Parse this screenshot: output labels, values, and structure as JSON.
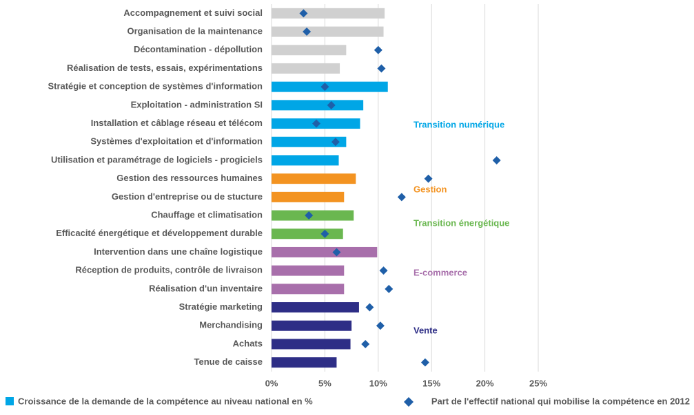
{
  "chart_data": {
    "type": "bar-dot",
    "categories": [
      "Accompagnement et suivi social",
      "Organisation de la maintenance",
      "Décontamination - dépollution",
      "Réalisation de tests, essais, expérimentations",
      "Stratégie et conception de systèmes d'information",
      "Exploitation - administration SI",
      "Installation et câblage réseau et télécom",
      "Systèmes d'exploitation et d'information",
      "Utilisation et paramétrage de logiciels - progiciels",
      "Gestion des ressources humaines",
      "Gestion d'entreprise ou de stucture",
      "Chauffage et climatisation",
      "Efficacité énergétique et développement durable",
      "Intervention dans une chaîne logistique",
      "Réception de produits, contrôle de livraison",
      "Réalisation d'un inventaire",
      "Stratégie marketing",
      "Merchandising",
      "Achats",
      "Tenue de caisse"
    ],
    "series": [
      {
        "name": "Croissance de la demande de la compétence au niveau national en %",
        "color": "#00a6e6",
        "colors": [
          "#d0d0d0",
          "#d0d0d0",
          "#d0d0d0",
          "#d0d0d0",
          "#00a6e6",
          "#00a6e6",
          "#00a6e6",
          "#00a6e6",
          "#00a6e6",
          "#f39321",
          "#f39321",
          "#6ab750",
          "#6ab750",
          "#a86fab",
          "#a86fab",
          "#a86fab",
          "#2e2e86",
          "#2e2e86",
          "#2e2e86",
          "#2e2e86"
        ],
        "values": [
          10.6,
          10.5,
          7.0,
          6.4,
          10.9,
          8.6,
          8.3,
          7.0,
          6.3,
          7.9,
          6.8,
          7.7,
          6.7,
          9.9,
          6.8,
          6.8,
          8.2,
          7.5,
          7.4,
          6.1
        ]
      },
      {
        "name": "Part de l'effectif national qui mobilise la compétence en 2012",
        "color": "#1f5fa8",
        "values": [
          3.0,
          3.3,
          10.0,
          10.3,
          5.0,
          5.6,
          4.2,
          6.0,
          21.1,
          14.7,
          12.2,
          3.5,
          5.0,
          6.1,
          10.5,
          11.0,
          9.2,
          10.2,
          8.8,
          14.4
        ]
      }
    ],
    "annotations": [
      {
        "text": "Transition numérique",
        "color": "#00a6e6"
      },
      {
        "text": "Gestion",
        "color": "#f39321"
      },
      {
        "text": "Transition énergétique",
        "color": "#6ab750"
      },
      {
        "text": "E-commerce",
        "color": "#a86fab"
      },
      {
        "text": "Vente",
        "color": "#2e2e86"
      }
    ],
    "xlim": [
      0,
      25
    ],
    "xticks": [
      {
        "value": 0,
        "label": "0%"
      },
      {
        "value": 5,
        "label": "5%"
      },
      {
        "value": 10,
        "label": "10%"
      },
      {
        "value": 15,
        "label": "15%"
      },
      {
        "value": 20,
        "label": "20%"
      },
      {
        "value": 25,
        "label": "25%"
      }
    ],
    "grid": true
  }
}
